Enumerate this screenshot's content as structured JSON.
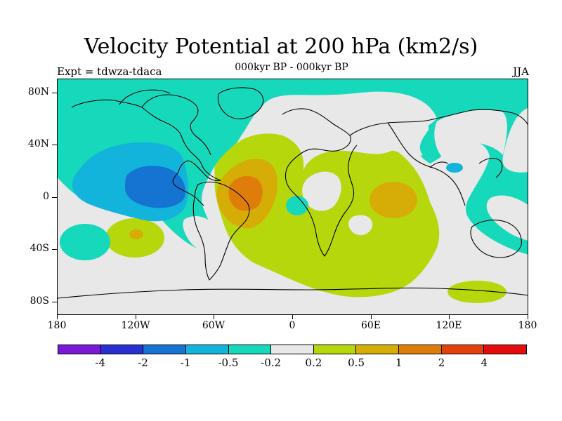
{
  "title": "Velocity Potential at 200 hPa (km2/s)",
  "subtitle_left": "Expt = tdwza-tdaca",
  "subtitle_center": "000kyr BP - 000kyr BP",
  "subtitle_right": "JJA",
  "y_axis_labels": [
    "80N",
    "40N",
    "0",
    "40S",
    "80S"
  ],
  "x_axis_labels": [
    "180",
    "120W",
    "60W",
    "0",
    "60E",
    "120E",
    "180"
  ],
  "colorbar": {
    "colors": [
      "#7a19d6",
      "#2a2fd2",
      "#1574d2",
      "#12b4dc",
      "#16d8bb",
      "#e8e8e8",
      "#b6d70b",
      "#d6ad07",
      "#de7d0a",
      "#e2420a",
      "#e50c0c"
    ],
    "labels": [
      "-4",
      "-2",
      "-1",
      "-0.5",
      "-0.2",
      "0.2",
      "0.5",
      "1",
      "2",
      "4"
    ]
  },
  "map_colors": {
    "background": "#e8e8e8",
    "negative_weak": "#16d8bb",
    "negative_mid": "#12b4dc",
    "negative_strong": "#1574d2",
    "positive_weak": "#b6d70b",
    "positive_mid": "#d6ad07",
    "positive_strong": "#de7d0a",
    "coastline": "#000000"
  }
}
